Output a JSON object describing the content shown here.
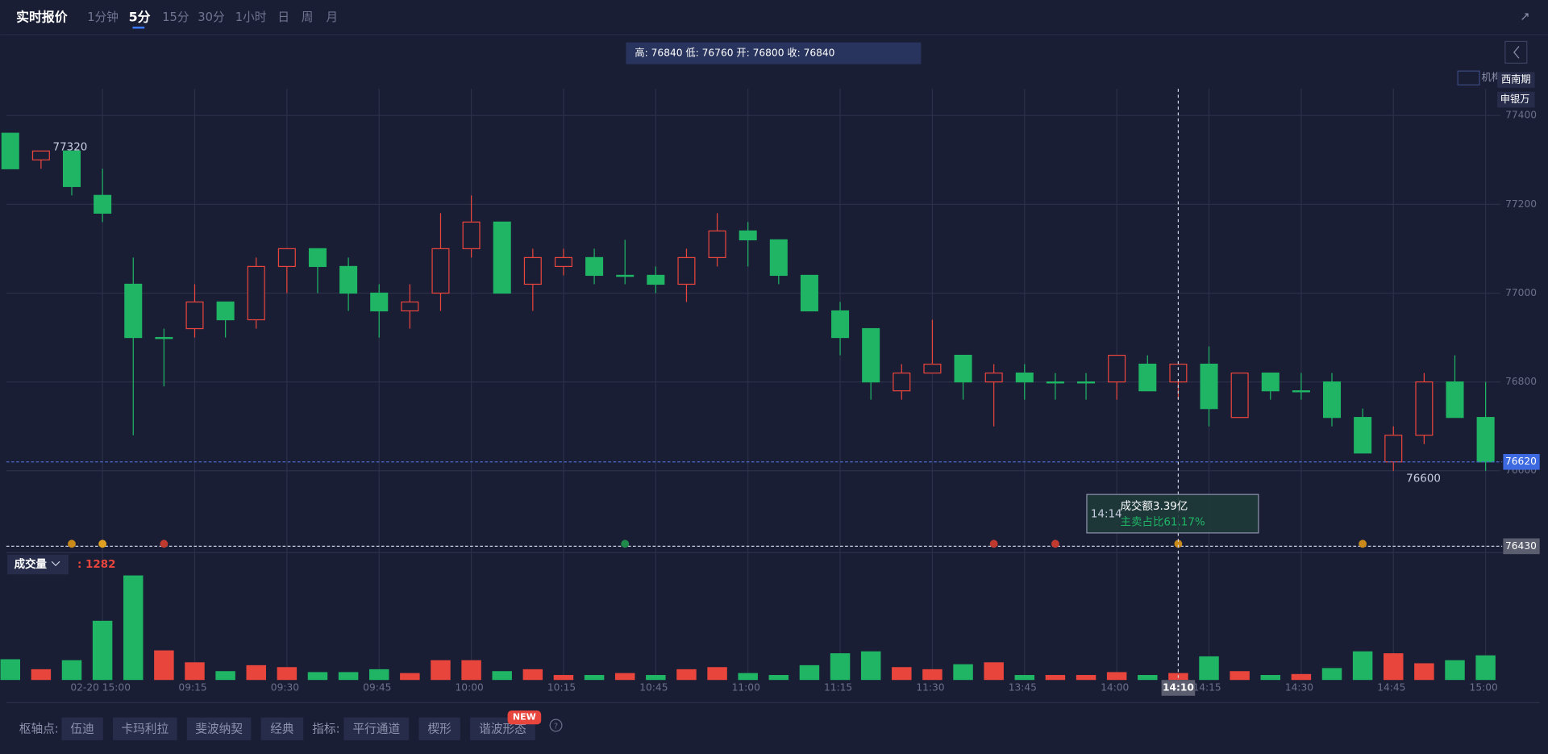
{
  "header": {
    "title": "实时报价",
    "tabs": [
      "1分钟",
      "5分",
      "15分",
      "30分",
      "1小时",
      "日",
      "周",
      "月"
    ]
  },
  "ohlc_summary": "高: 76840 低: 76760 开: 76800 收: 76840",
  "legend_tags": [
    "机构",
    "西南期",
    "申银万"
  ],
  "tooltip": {
    "time": "14:14",
    "amount": "成交额3.39亿",
    "ratio": "主卖占比61.17%"
  },
  "toolbar": {
    "pivot_label": "枢轴点:",
    "pivot_buttons": [
      "伍迪",
      "卡玛利拉",
      "斐波纳契",
      "经典"
    ],
    "indicator_label": "指标:",
    "indicator_buttons": [
      "平行通道",
      "楔形",
      "谐波形态"
    ],
    "new_badge": "NEW",
    "help": "?"
  },
  "chart_data": {
    "type": "candlestick",
    "categories": [
      null,
      null,
      null,
      "02-20 15:00",
      null,
      null,
      "09:15",
      null,
      null,
      "09:30",
      null,
      null,
      "09:45",
      null,
      null,
      "10:00",
      null,
      null,
      "10:15",
      null,
      null,
      "10:45",
      null,
      null,
      "11:00",
      null,
      null,
      "11:15",
      null,
      null,
      "11:30",
      null,
      null,
      "13:45",
      null,
      null,
      "14:00",
      null,
      "14:10",
      "14:15",
      null,
      null,
      "14:30",
      null,
      null,
      "14:45",
      null,
      null,
      "15:00"
    ],
    "open": [
      77360,
      77300,
      77320,
      77220,
      77020,
      76900,
      76920,
      76980,
      76940,
      77060,
      77100,
      77060,
      77000,
      76960,
      77000,
      77100,
      77160,
      77020,
      77060,
      77080,
      77040,
      77040,
      77020,
      77080,
      77140,
      77120,
      77040,
      76960,
      76920,
      76780,
      76820,
      76860,
      76800,
      76820,
      76800,
      76800,
      76800,
      76840,
      76800,
      76840,
      76720,
      76820,
      76780,
      76800,
      76720,
      76620,
      76680,
      76800,
      76720
    ],
    "high": [
      77360,
      77320,
      77320,
      77280,
      77080,
      76920,
      77020,
      76980,
      77080,
      77100,
      77100,
      77080,
      77020,
      77020,
      77180,
      77220,
      77160,
      77100,
      77100,
      77100,
      77120,
      77060,
      77100,
      77180,
      77160,
      77120,
      77040,
      76980,
      76920,
      76840,
      76940,
      76860,
      76840,
      76840,
      76820,
      76820,
      76860,
      76860,
      76840,
      76880,
      76820,
      76820,
      76820,
      76820,
      76740,
      76700,
      76820,
      76860,
      76800
    ],
    "low": [
      77280,
      77280,
      77220,
      77160,
      76680,
      76790,
      76900,
      76900,
      76920,
      77000,
      77000,
      76960,
      76900,
      76920,
      76960,
      77080,
      77000,
      76960,
      77040,
      77020,
      77020,
      77000,
      76980,
      77060,
      77060,
      77020,
      76960,
      76860,
      76760,
      76760,
      76820,
      76760,
      76700,
      76760,
      76760,
      76760,
      76760,
      76780,
      76760,
      76700,
      76720,
      76760,
      76760,
      76700,
      76640,
      76600,
      76660,
      76720,
      76600
    ],
    "close": [
      77280,
      77320,
      77240,
      77180,
      76900,
      76900,
      76980,
      76940,
      77060,
      77100,
      77060,
      77000,
      76960,
      76980,
      77100,
      77160,
      77000,
      77080,
      77080,
      77040,
      77040,
      77020,
      77080,
      77140,
      77120,
      77040,
      76960,
      76900,
      76800,
      76820,
      76840,
      76800,
      76820,
      76800,
      76800,
      76800,
      76860,
      76780,
      76840,
      76740,
      76820,
      76780,
      76780,
      76720,
      76640,
      76680,
      76800,
      76720,
      76620
    ],
    "ylim": [
      76420,
      77460
    ],
    "yticks": [
      77400,
      77200,
      77000,
      76800,
      76600
    ],
    "grid": true,
    "colors": {
      "up": "#e8453c",
      "down": "#1fb565"
    },
    "marker_line": 76430,
    "volume": {
      "label": "成交量",
      "current_value_label": ": 1282",
      "ylim": [
        0,
        5700
      ],
      "values": [
        1080,
        560,
        1030,
        3080,
        5440,
        1540,
        920,
        460,
        770,
        670,
        410,
        410,
        560,
        360,
        1030,
        1030,
        460,
        560,
        260,
        260,
        360,
        260,
        560,
        670,
        360,
        260,
        770,
        1390,
        1490,
        670,
        560,
        820,
        920,
        260,
        260,
        260,
        410,
        260,
        360,
        1230,
        460,
        260,
        310,
        620,
        1490,
        1390,
        870,
        1030,
        1282
      ]
    }
  }
}
